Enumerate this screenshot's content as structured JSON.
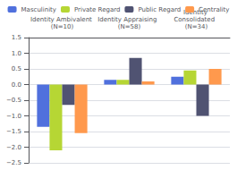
{
  "chart_data": {
    "type": "bar",
    "categories": [
      "Identity Ambivalent (N=10)",
      "Identity Appraising  (N=58)",
      "Identity Consolidated  (N=34)"
    ],
    "series": [
      {
        "name": "Masculinity",
        "values": [
          -1.35,
          0.15,
          0.25
        ]
      },
      {
        "name": "Private Regard",
        "values": [
          -2.1,
          0.15,
          0.45
        ]
      },
      {
        "name": "Public Regard",
        "values": [
          -0.65,
          0.85,
          -1.0
        ]
      },
      {
        "name": "Centrality",
        "values": [
          -1.55,
          0.1,
          0.5
        ]
      }
    ],
    "ylim": [
      -2.5,
      1.5
    ],
    "yticks": [
      {
        "value": -2.5,
        "label": "−2.5"
      },
      {
        "value": -2.0,
        "label": "−2.0"
      },
      {
        "value": -1.5,
        "label": "−1.5"
      },
      {
        "value": -1.0,
        "label": "−1.0"
      },
      {
        "value": -0.5,
        "label": "−0.5"
      },
      {
        "value": 0.0,
        "label": "0.0"
      },
      {
        "value": 0.5,
        "label": "0.5"
      },
      {
        "value": 1.0,
        "label": "1.0"
      },
      {
        "value": 1.5,
        "label": "1.5"
      }
    ],
    "grid": true,
    "legend": "top"
  }
}
